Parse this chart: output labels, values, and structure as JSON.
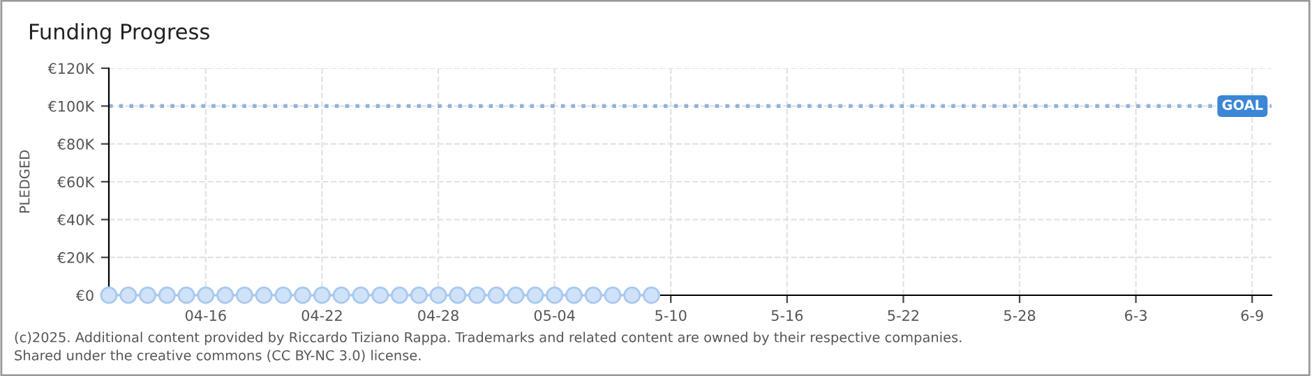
{
  "chart_data": {
    "type": "line",
    "title": "Funding Progress",
    "ylabel": "PLEDGED",
    "x": [
      "2025-04-11",
      "2025-04-12",
      "2025-04-13",
      "2025-04-14",
      "2025-04-15",
      "2025-04-16",
      "2025-04-17",
      "2025-04-18",
      "2025-04-19",
      "2025-04-20",
      "2025-04-21",
      "2025-04-22",
      "2025-04-23",
      "2025-04-24",
      "2025-04-25",
      "2025-04-26",
      "2025-04-27",
      "2025-04-28",
      "2025-04-29",
      "2025-04-30",
      "2025-05-01",
      "2025-05-02",
      "2025-05-03",
      "2025-05-04",
      "2025-05-05",
      "2025-05-06",
      "2025-05-07",
      "2025-05-08",
      "2025-05-09"
    ],
    "series": [
      {
        "color": "#a9c9ef",
        "values": [
          0,
          0,
          0,
          0,
          0,
          0,
          0,
          0,
          0,
          0,
          0,
          0,
          0,
          0,
          0,
          0,
          0,
          0,
          0,
          0,
          0,
          0,
          0,
          0,
          0,
          0,
          0,
          0,
          0
        ]
      }
    ],
    "marker": "circle",
    "line_style": "solid",
    "grid": true,
    "legend": false,
    "xlim": [
      "2025-04-11",
      "2025-06-10"
    ],
    "xticks": [
      {
        "value": "2025-04-16",
        "label": "04-16"
      },
      {
        "value": "2025-04-22",
        "label": "04-22"
      },
      {
        "value": "2025-04-28",
        "label": "04-28"
      },
      {
        "value": "2025-05-04",
        "label": "05-04"
      },
      {
        "value": "2025-05-10",
        "label": "5-10"
      },
      {
        "value": "2025-05-16",
        "label": "5-16"
      },
      {
        "value": "2025-05-22",
        "label": "5-22"
      },
      {
        "value": "2025-05-28",
        "label": "5-28"
      },
      {
        "value": "2025-06-03",
        "label": "6-3"
      },
      {
        "value": "2025-06-09",
        "label": "6-9"
      }
    ],
    "ylim": [
      0,
      120000
    ],
    "yticks": [
      {
        "value": 0,
        "label": "€0"
      },
      {
        "value": 20000,
        "label": "€20K"
      },
      {
        "value": 40000,
        "label": "€40K"
      },
      {
        "value": 60000,
        "label": "€60K"
      },
      {
        "value": 80000,
        "label": "€80K"
      },
      {
        "value": 100000,
        "label": "€100K"
      },
      {
        "value": 120000,
        "label": "€120K"
      }
    ],
    "ref_lines": [
      {
        "axis": "y",
        "value": 100000,
        "label": "GOAL",
        "color": "#8fb3dd",
        "line_style": "dotted"
      }
    ],
    "annotations": [
      "(c)2025. Additional content provided by Riccardo Tiziano Rappa. Trademarks and related content are owned by their respective companies.",
      "Shared under the creative commons (CC BY-NC 3.0) license."
    ]
  }
}
